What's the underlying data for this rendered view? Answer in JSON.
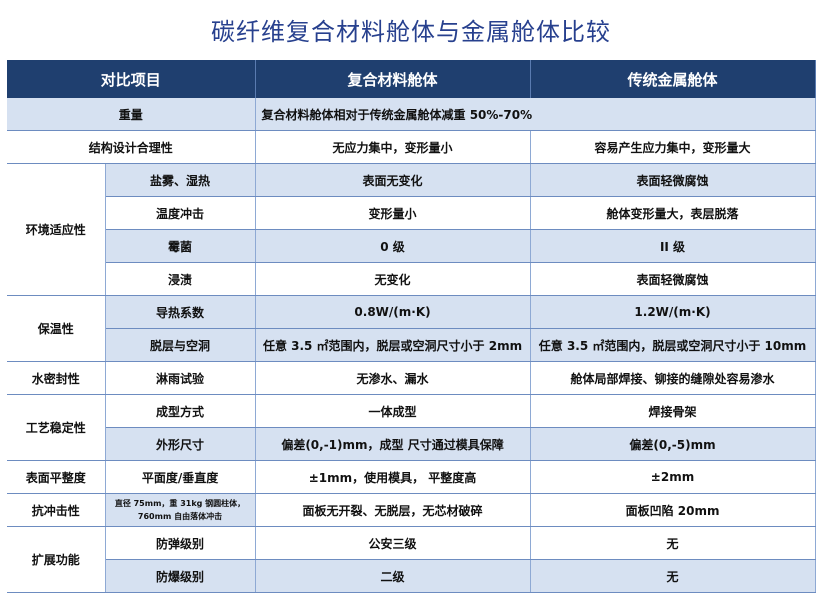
{
  "title": "碳纤维复合材料舱体与金属舱体比较",
  "headers": [
    "对比项目",
    "复合材料舱体",
    "传统金属舱体"
  ],
  "rows": {
    "weight": {
      "label": "重量",
      "value": "复合材料舱体相对于传统金属舱体减重 50%-70%"
    },
    "structure": {
      "label": "结构设计合理性",
      "composite": "无应力集中，变形量小",
      "metal": "容易产生应力集中，变形量大"
    },
    "env": {
      "label": "环境适应性",
      "items": [
        {
          "sub": "盐雾、湿热",
          "composite": "表面无变化",
          "metal": "表面轻微腐蚀"
        },
        {
          "sub": "温度冲击",
          "composite": "变形量小",
          "metal": "舱体变形量大，表层脱落"
        },
        {
          "sub": "霉菌",
          "composite": "0 级",
          "metal": "II 级"
        },
        {
          "sub": "浸渍",
          "composite": "无变化",
          "metal": "表面轻微腐蚀"
        }
      ]
    },
    "thermal": {
      "label": "保温性",
      "items": [
        {
          "sub": "导热系数",
          "composite": "0.8W/(m·K)",
          "metal": "1.2W/(m·K)"
        },
        {
          "sub": "脱层与空洞",
          "composite": "任意 3.5 ㎡范围内，脱层或空洞尺寸小于 2mm",
          "metal": "任意 3.5 ㎡范围内，脱层或空洞尺寸小于 10mm"
        }
      ]
    },
    "water": {
      "label": "水密封性",
      "sub": "淋雨试验",
      "composite": "无渗水、漏水",
      "metal": "舱体局部焊接、铆接的缝隙处容易渗水"
    },
    "process": {
      "label": "工艺稳定性",
      "items": [
        {
          "sub": "成型方式",
          "composite": "一体成型",
          "metal": "焊接骨架"
        },
        {
          "sub": "外形尺寸",
          "composite": "偏差(0,-1)mm，成型 尺寸通过模具保障",
          "metal": "偏差(0,-5)mm"
        }
      ]
    },
    "flatness": {
      "label": "表面平整度",
      "sub": "平面度/垂直度",
      "composite": "±1mm，使用模具， 平整度高",
      "metal": "±2mm"
    },
    "impact": {
      "label": "抗冲击性",
      "sub": "直径 75mm，重 31kg 钢圆柱体，760mm 自由落体冲击",
      "composite": "面板无开裂、无脱层，无芯材破碎",
      "metal": "面板凹陷 20mm"
    },
    "extend": {
      "label": "扩展功能",
      "items": [
        {
          "sub": "防弹级别",
          "composite": "公安三级",
          "metal": "无"
        },
        {
          "sub": "防爆级别",
          "composite": "二级",
          "metal": "无"
        }
      ]
    }
  }
}
